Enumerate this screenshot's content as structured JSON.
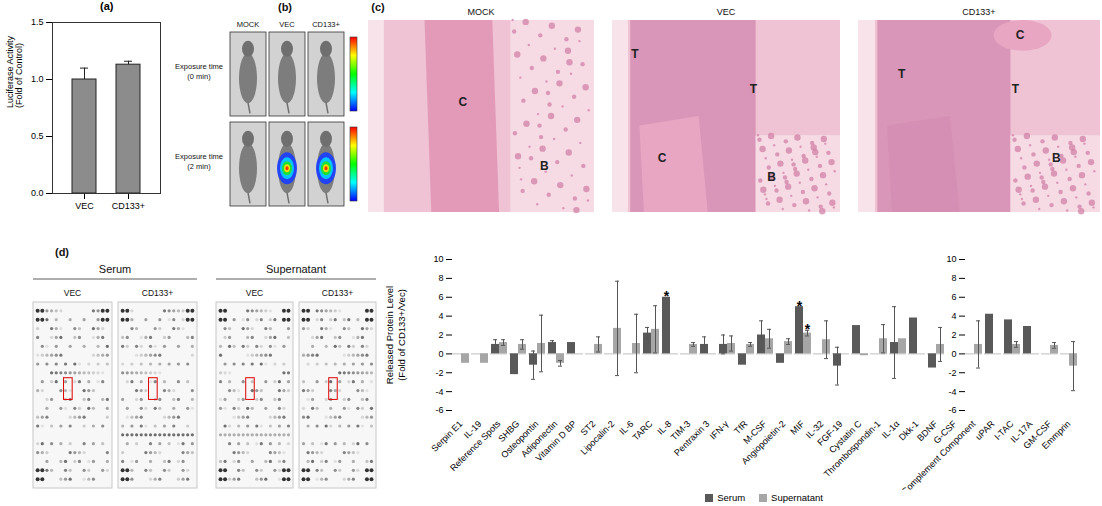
{
  "chart_data": [
    {
      "type": "bar",
      "panel_label": "(a)",
      "y_label": [
        "Luciferase Activity",
        "(Fold of Control)"
      ],
      "categories": [
        "VEC",
        "CD133+"
      ],
      "values": [
        1.0,
        1.13
      ],
      "errors": [
        0.1,
        0.03
      ],
      "color": "#8c8c8c",
      "ylim": [
        0,
        1.5
      ],
      "yticks": [
        {
          "value": 0,
          "label": "0.0"
        },
        {
          "value": 0.5,
          "label": "0.5"
        },
        {
          "value": 1,
          "label": "1.0"
        },
        {
          "value": 1.5,
          "label": "1.5"
        }
      ]
    },
    {
      "type": "bar",
      "y_label": [
        "Released Protein Level",
        "(Fold of CD133+/Vec)"
      ],
      "categories": [
        "Serpin E1",
        "IL-19",
        "Reference Spots",
        "SHBG",
        "Osteopontin",
        "Adiponectin",
        "Vitamin D BP",
        "ST2",
        "Lipocalin-2",
        "IL-6",
        "TARC",
        "IL-8",
        "TIM-3",
        "Pentraxin 3",
        "IFN-γ",
        "TfR",
        "M-CSF",
        "Angiopoietin-2",
        "MIF",
        "IL-32",
        "FGF-19",
        "Cystatin C",
        "Thrombospondin-1",
        "IL-1α",
        "Dkk-1",
        "BDNF",
        "G-CSF",
        "Complement Component",
        "uPAR",
        "I-TAC",
        "IL-17A",
        "GM-CSF",
        "Emmprin"
      ],
      "series": [
        {
          "name": "Serum",
          "color": "#595959",
          "values": [
            null,
            null,
            1.0,
            -2.2,
            -1.2,
            1.2,
            1.2,
            null,
            null,
            null,
            2.2,
            6.0,
            null,
            1.0,
            1.0,
            -1.2,
            2.0,
            -1.0,
            5.0,
            null,
            -1.3,
            3.0,
            null,
            1.2,
            3.8,
            -1.5,
            null,
            null,
            4.2,
            3.6,
            2.9,
            null,
            null
          ],
          "errors": [
            null,
            null,
            0.5,
            null,
            1.5,
            0.2,
            null,
            null,
            null,
            null,
            0.6,
            null,
            null,
            0.8,
            1.0,
            null,
            1.5,
            null,
            null,
            null,
            2.0,
            null,
            null,
            3.8,
            null,
            null,
            null,
            null,
            null,
            null,
            null,
            null,
            null
          ]
        },
        {
          "name": "Supernatant",
          "color": "#a6a6a6",
          "values": [
            -1.0,
            -1.0,
            1.2,
            1.0,
            1.1,
            -1.0,
            null,
            1.0,
            2.7,
            1.1,
            2.6,
            null,
            1.0,
            null,
            1.1,
            1.0,
            1.6,
            1.3,
            2.2,
            1.5,
            null,
            -0.2,
            1.6,
            1.6,
            null,
            1.0,
            null,
            1.0,
            null,
            1.0,
            null,
            0.9,
            -1.3
          ],
          "errors": [
            null,
            null,
            0.3,
            0.5,
            3.0,
            0.3,
            null,
            0.8,
            5.0,
            3.1,
            2.5,
            null,
            0.2,
            null,
            0.8,
            0.2,
            1.0,
            0.3,
            0.3,
            2.0,
            null,
            null,
            1.5,
            null,
            null,
            1.8,
            null,
            2.5,
            null,
            0.3,
            null,
            0.3,
            2.6
          ]
        }
      ],
      "ylim": [
        -6,
        10
      ],
      "yticks": [
        -6,
        -4,
        -2,
        0,
        2,
        4,
        6,
        8,
        10
      ],
      "legend": "bottom",
      "annotations": [
        {
          "category": "IL-8",
          "series": "Serum",
          "text": "*"
        },
        {
          "category": "MIF",
          "series": "Serum",
          "text": "*"
        },
        {
          "category": "MIF",
          "series": "Supernatant",
          "text": "*"
        }
      ]
    }
  ],
  "panels": {
    "b": {
      "label": "(b)",
      "columns": [
        "MOCK",
        "VEC",
        "CD133+"
      ],
      "rows": [
        [
          "Exposure time",
          "(0 min)"
        ],
        [
          "Exposure time",
          "(2 min)"
        ]
      ]
    },
    "c": {
      "label": "(c)",
      "images": [
        {
          "title": "MOCK",
          "marks": [
            "C",
            "B"
          ]
        },
        {
          "title": "VEC",
          "marks": [
            "T",
            "T",
            "C",
            "B"
          ]
        },
        {
          "title": "CD133+",
          "marks": [
            "C",
            "T",
            "T",
            "B"
          ]
        }
      ]
    },
    "d_blots": {
      "label": "(d)",
      "groups": [
        {
          "title": "Serum",
          "columns": [
            "VEC",
            "CD133+"
          ]
        },
        {
          "title": "Supernatant",
          "columns": [
            "VEC",
            "CD133+"
          ]
        }
      ]
    }
  }
}
